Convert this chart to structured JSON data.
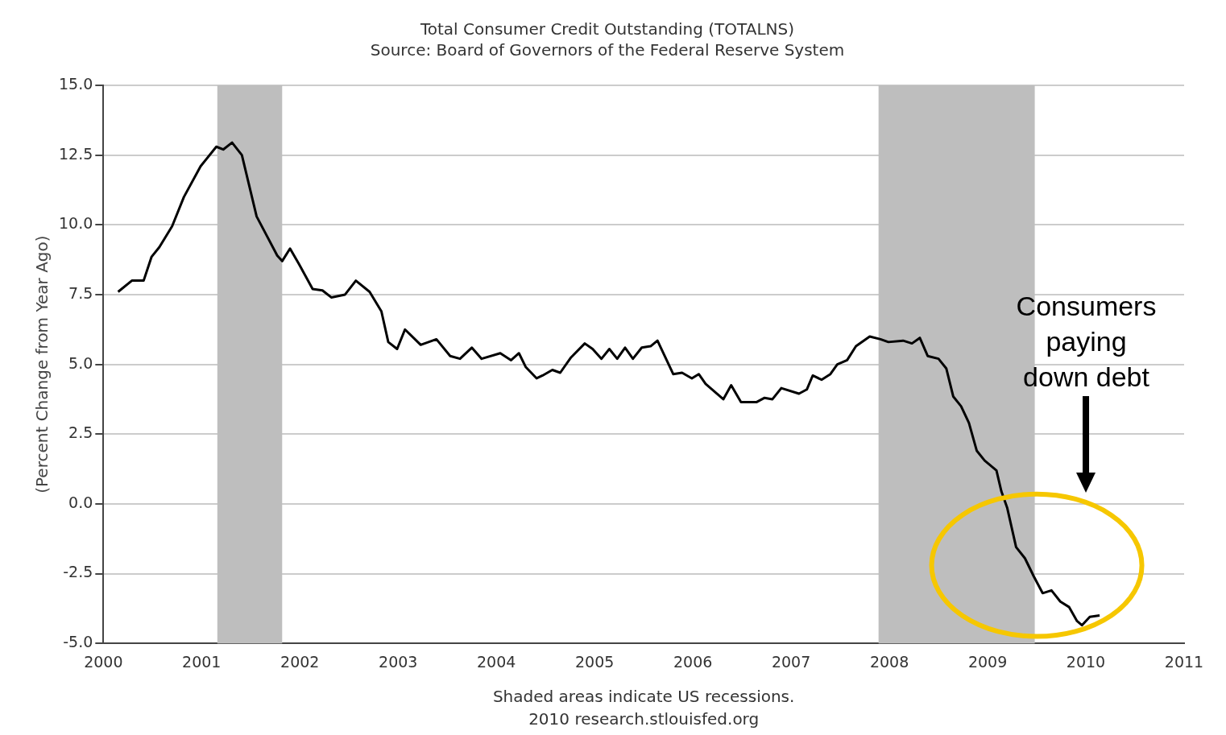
{
  "chart_data": {
    "type": "line",
    "title": "Total Consumer Credit Outstanding (TOTALNS)",
    "subtitle": "Source: Board of Governors of the Federal Reserve System",
    "ylabel": "(Percent Change from Year Ago)",
    "x": [
      2000.15,
      2000.29,
      2000.41,
      2000.49,
      2000.57,
      2000.7,
      2000.82,
      2000.99,
      2001.15,
      2001.22,
      2001.31,
      2001.41,
      2001.56,
      2001.68,
      2001.77,
      2001.82,
      2001.9,
      2001.99,
      2002.13,
      2002.23,
      2002.32,
      2002.46,
      2002.57,
      2002.71,
      2002.83,
      2002.9,
      2002.99,
      2003.07,
      2003.23,
      2003.39,
      2003.53,
      2003.63,
      2003.75,
      2003.85,
      2004.04,
      2004.15,
      2004.23,
      2004.3,
      2004.41,
      2004.47,
      2004.57,
      2004.65,
      2004.76,
      2004.9,
      2004.98,
      2005.07,
      2005.15,
      2005.23,
      2005.31,
      2005.39,
      2005.48,
      2005.57,
      2005.64,
      2005.8,
      2005.89,
      2005.99,
      2006.06,
      2006.13,
      2006.31,
      2006.39,
      2006.49,
      2006.65,
      2006.73,
      2006.81,
      2006.9,
      2007.08,
      2007.16,
      2007.22,
      2007.31,
      2007.4,
      2007.47,
      2007.57,
      2007.66,
      2007.8,
      2007.91,
      2007.99,
      2008.14,
      2008.23,
      2008.31,
      2008.39,
      2008.5,
      2008.58,
      2008.65,
      2008.73,
      2008.81,
      2008.89,
      2008.97,
      2009.09,
      2009.14,
      2009.2,
      2009.29,
      2009.38,
      2009.47,
      2009.56,
      2009.65,
      2009.74,
      2009.83,
      2009.91,
      2009.96,
      2010.04,
      2010.14
    ],
    "series": [
      {
        "color": "#000000",
        "values": [
          7.6,
          8.0,
          8.0,
          8.85,
          9.2,
          9.95,
          11.0,
          12.1,
          12.8,
          12.7,
          12.95,
          12.5,
          10.3,
          9.5,
          8.9,
          8.7,
          9.15,
          8.6,
          7.7,
          7.65,
          7.4,
          7.5,
          8.0,
          7.6,
          6.9,
          5.8,
          5.55,
          6.25,
          5.7,
          5.9,
          5.3,
          5.2,
          5.6,
          5.2,
          5.4,
          5.15,
          5.4,
          4.9,
          4.5,
          4.6,
          4.8,
          4.7,
          5.25,
          5.75,
          5.55,
          5.2,
          5.55,
          5.2,
          5.6,
          5.2,
          5.6,
          5.65,
          5.85,
          4.65,
          4.7,
          4.5,
          4.65,
          4.3,
          3.75,
          4.25,
          3.65,
          3.65,
          3.8,
          3.75,
          4.15,
          3.95,
          4.1,
          4.6,
          4.45,
          4.65,
          5.0,
          5.15,
          5.65,
          6.0,
          5.9,
          5.8,
          5.85,
          5.75,
          5.95,
          5.3,
          5.2,
          4.85,
          3.85,
          3.5,
          2.9,
          1.9,
          1.55,
          1.2,
          0.45,
          -0.15,
          -1.55,
          -1.95,
          -2.6,
          -3.2,
          -3.1,
          -3.5,
          -3.7,
          -4.2,
          -4.35,
          -4.05,
          -4.0
        ]
      }
    ],
    "xlim": [
      2000,
      2011
    ],
    "xticks": [
      2000,
      2001,
      2002,
      2003,
      2004,
      2005,
      2006,
      2007,
      2008,
      2009,
      2010,
      2011
    ],
    "ylim": [
      -5,
      15
    ],
    "yticks": [
      {
        "value": -5,
        "label": "-5.0"
      },
      {
        "value": -2.5,
        "label": "-2.5"
      },
      {
        "value": 0,
        "label": "0.0"
      },
      {
        "value": 2.5,
        "label": "2.5"
      },
      {
        "value": 5,
        "label": "5.0"
      },
      {
        "value": 7.5,
        "label": "7.5"
      },
      {
        "value": 10,
        "label": "10.0"
      },
      {
        "value": 12.5,
        "label": "12.5"
      },
      {
        "value": 15,
        "label": "15.0"
      }
    ],
    "bands": [
      {
        "axis": "x",
        "from": 2001.16,
        "to": 2001.82,
        "color": "#bebebe"
      },
      {
        "axis": "x",
        "from": 2007.89,
        "to": 2009.48,
        "color": "#bebebe"
      }
    ],
    "annotations": [
      "Shaded areas indicate US recessions.",
      "2010 research.stlouisfed.org",
      "Consumers paying down debt"
    ],
    "grid": "y",
    "legend": false,
    "marker": "none",
    "line_style": "solid"
  }
}
